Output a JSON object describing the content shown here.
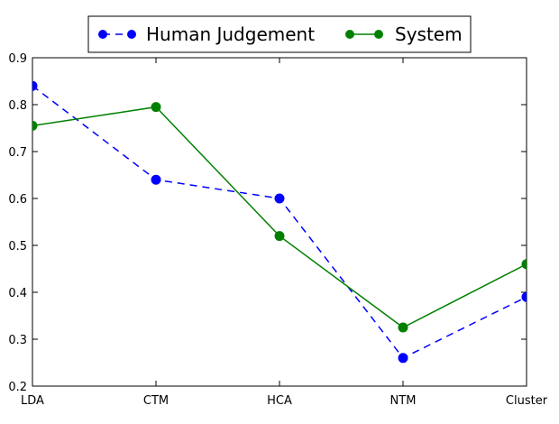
{
  "chart_data": {
    "type": "line",
    "categories": [
      "LDA",
      "CTM",
      "HCA",
      "NTM",
      "Cluster"
    ],
    "series": [
      {
        "name": "Human Judgement",
        "values": [
          0.84,
          0.64,
          0.6,
          0.26,
          0.39
        ],
        "color": "#0000ff",
        "style": "dashed"
      },
      {
        "name": "System",
        "values": [
          0.755,
          0.795,
          0.52,
          0.325,
          0.46
        ],
        "color": "#008000",
        "style": "solid"
      }
    ],
    "ylim": [
      0.2,
      0.9
    ],
    "yticks": [
      "0.2",
      "0.3",
      "0.4",
      "0.5",
      "0.6",
      "0.7",
      "0.8",
      "0.9"
    ],
    "grid": false,
    "legend_position": "top-center"
  }
}
